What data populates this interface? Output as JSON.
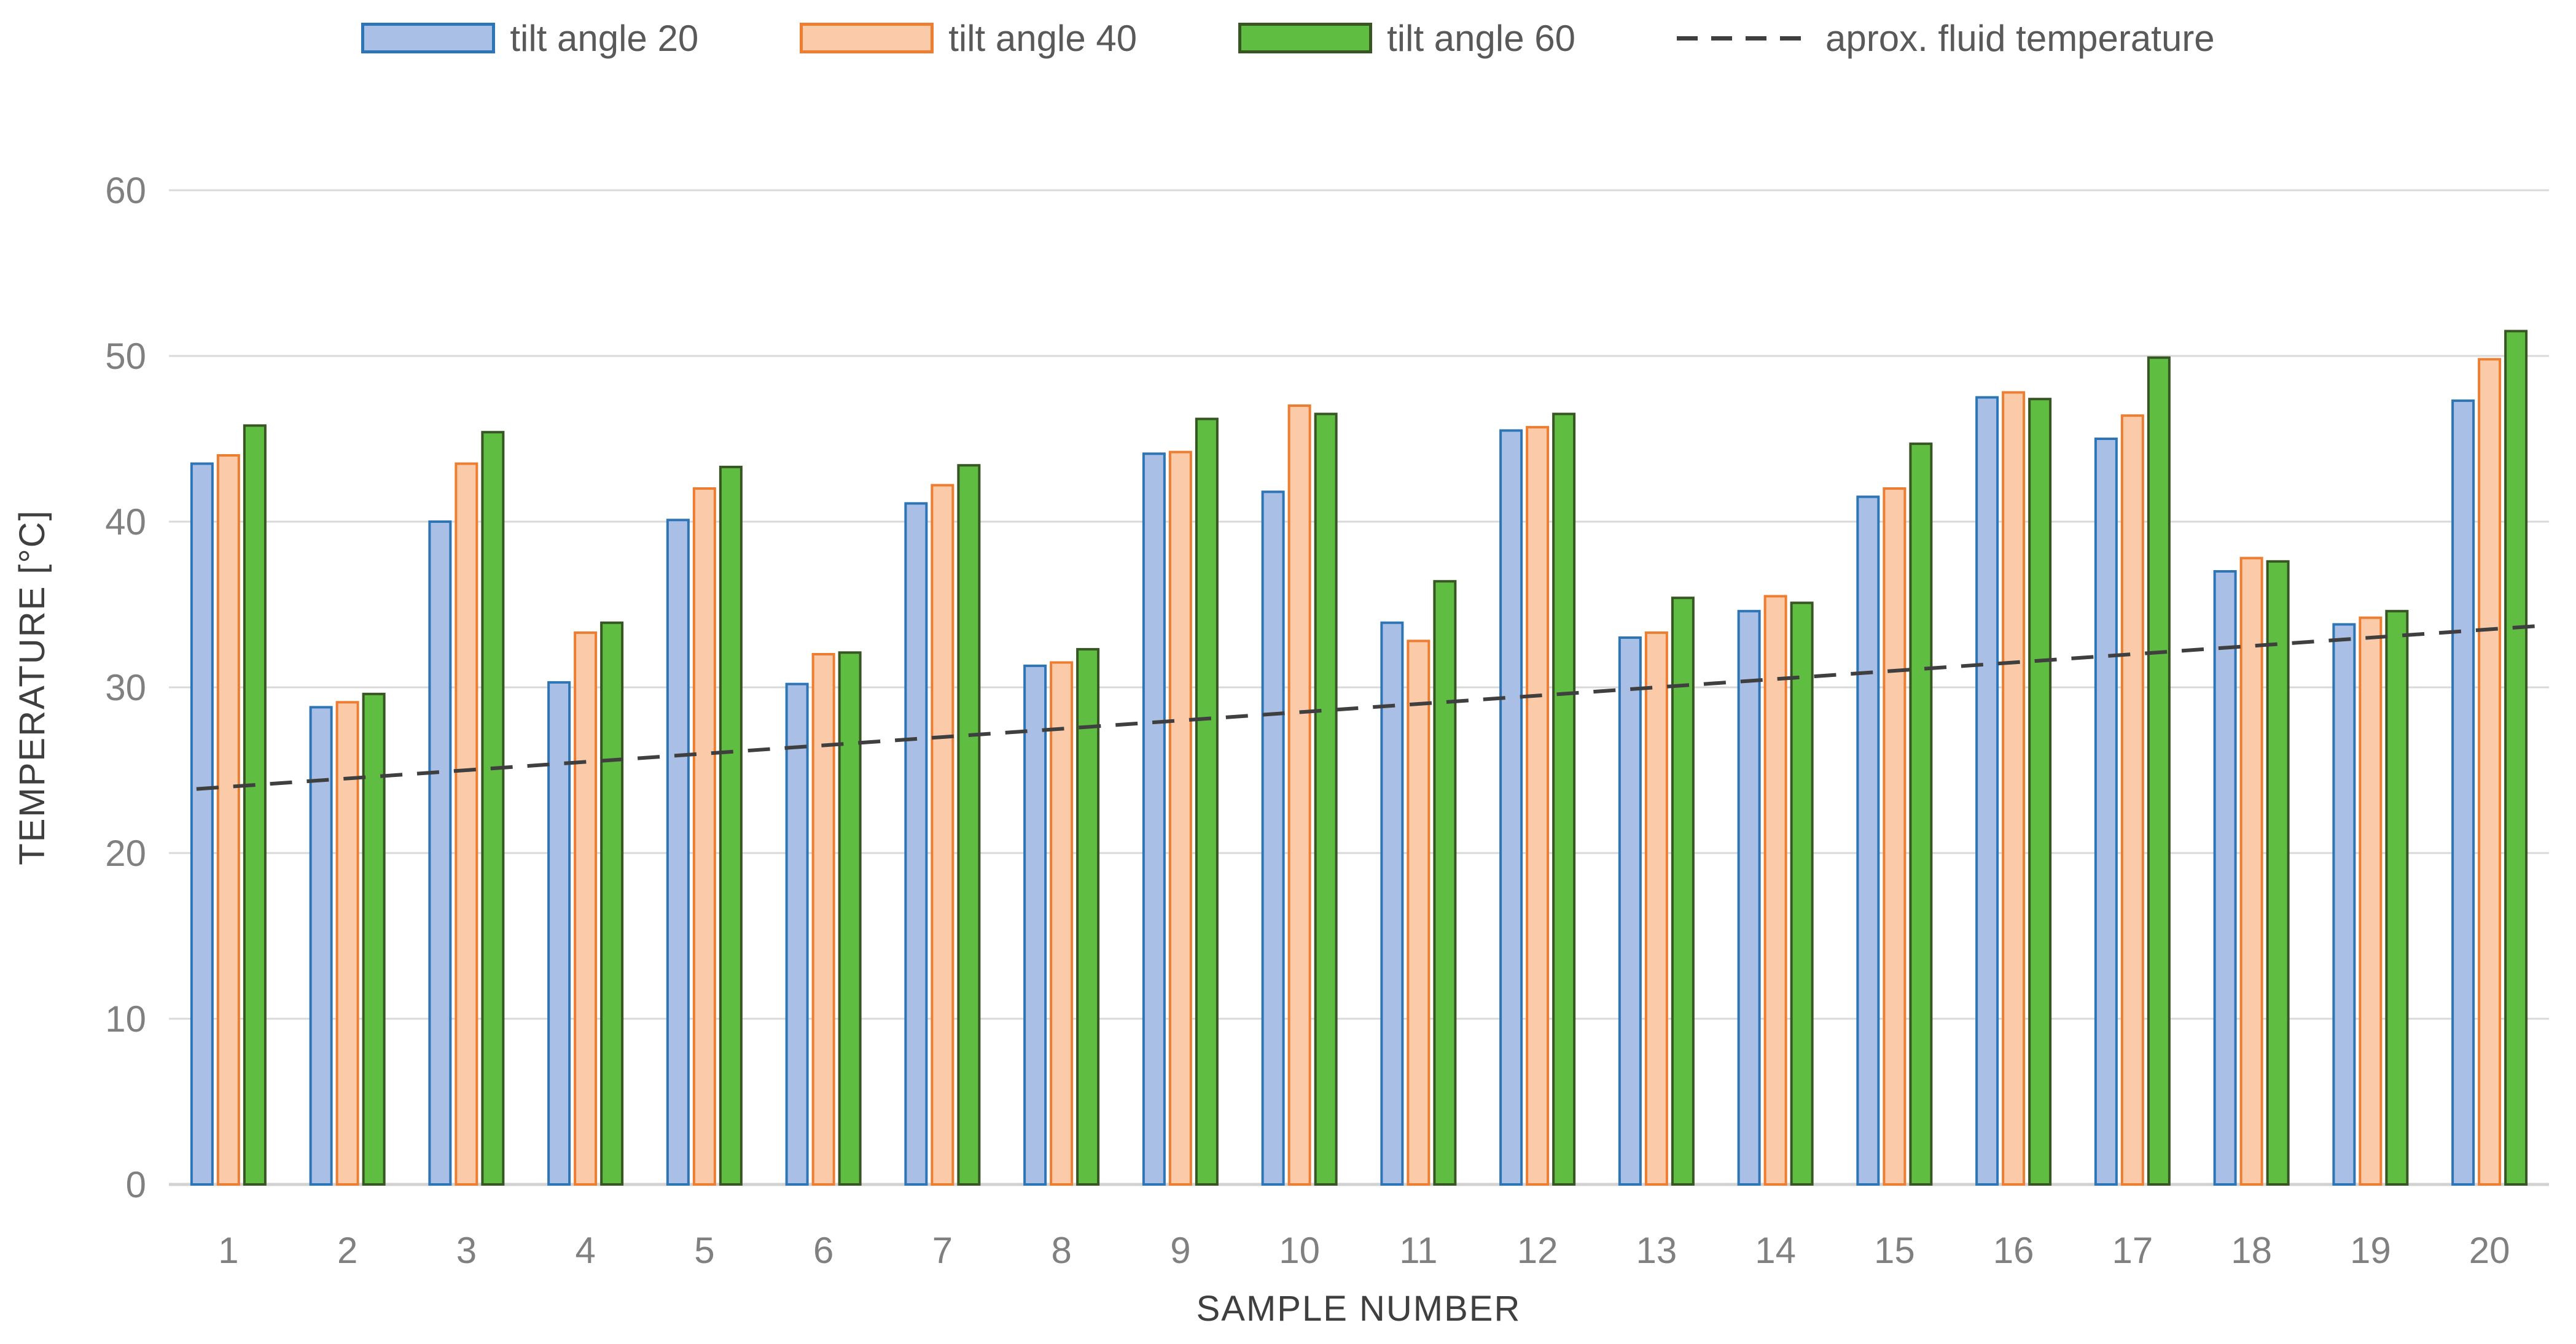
{
  "chart_data": {
    "type": "bar",
    "title": "",
    "categories": [
      "1",
      "2",
      "3",
      "4",
      "5",
      "6",
      "7",
      "8",
      "9",
      "10",
      "11",
      "12",
      "13",
      "14",
      "15",
      "16",
      "17",
      "18",
      "19",
      "20"
    ],
    "series": [
      {
        "name": "tilt angle 20",
        "fill": "#A9BFE5",
        "stroke": "#2E75B6",
        "values": [
          43.5,
          28.8,
          40.0,
          30.3,
          40.1,
          30.2,
          41.1,
          31.3,
          44.1,
          41.8,
          33.9,
          45.5,
          33.0,
          34.6,
          41.5,
          47.5,
          45.0,
          37.0,
          33.8,
          47.3
        ]
      },
      {
        "name": "tilt angle 40",
        "fill": "#FBCBA9",
        "stroke": "#ED7D31",
        "values": [
          44.0,
          29.1,
          43.5,
          33.3,
          42.0,
          32.0,
          42.2,
          31.5,
          44.2,
          47.0,
          32.8,
          45.7,
          33.3,
          35.5,
          42.0,
          47.8,
          46.4,
          37.8,
          34.2,
          49.8
        ]
      },
      {
        "name": "tilt angle 60",
        "fill": "#5FBE41",
        "stroke": "#375623",
        "values": [
          45.8,
          29.6,
          45.4,
          33.9,
          43.3,
          32.1,
          43.4,
          32.3,
          46.2,
          46.5,
          36.4,
          46.5,
          35.4,
          35.1,
          44.7,
          47.4,
          49.9,
          37.6,
          34.6,
          51.5
        ]
      }
    ],
    "line_series": {
      "name": "aprox. fluid temperature",
      "color": "#3F3F3F",
      "start_value": 24.0,
      "end_value": 33.5
    },
    "xlabel": "SAMPLE NUMBER",
    "ylabel": "TEMPERATURE [°C]",
    "ylim": [
      0,
      60
    ],
    "yticks": [
      0,
      10,
      20,
      30,
      40,
      50,
      60
    ],
    "grid": "horizontal",
    "legend_position": "top"
  },
  "styles": {
    "background": "#FFFFFF",
    "gridline_color": "#D9D9D9",
    "axis_line_color": "#D2D2D2",
    "tick_label_color": "#808080",
    "axis_title_color": "#3F3F3F",
    "legend_text_color": "#595959"
  }
}
